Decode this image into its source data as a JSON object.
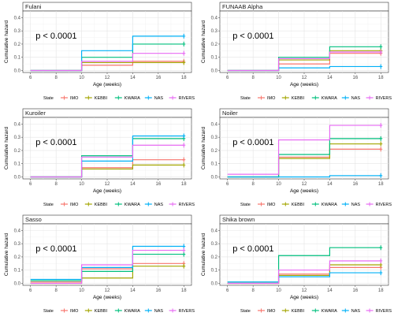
{
  "series_colors": {
    "IMO": "#F8766D",
    "KEBBI": "#A3A500",
    "KWARA": "#00BF7D",
    "NAS": "#00B0F6",
    "RIVERS": "#E76BF3"
  },
  "chart_data": [
    {
      "type": "line",
      "title": "Fulani",
      "xlabel": "Age (weeks)",
      "ylabel": "Cumulative hazard",
      "annotation": "p < 0.0001",
      "xlim": [
        5.4,
        18.6
      ],
      "ylim": [
        -0.015,
        0.45
      ],
      "xticks": [
        6,
        8,
        10,
        12,
        14,
        16,
        18
      ],
      "yticks": [
        0.0,
        0.1,
        0.2,
        0.3,
        0.4
      ],
      "ytick_labels": [
        "0.0",
        "0.1",
        "0.2",
        "0.3",
        "0.4"
      ],
      "legend_title": "State",
      "legend_position": "bottom",
      "series": [
        {
          "name": "IMO",
          "x": [
            6,
            10,
            14,
            18
          ],
          "y": [
            0.0,
            0.04,
            0.07,
            0.07
          ]
        },
        {
          "name": "KEBBI",
          "x": [
            6,
            10,
            14,
            18
          ],
          "y": [
            0.0,
            0.06,
            0.06,
            0.06
          ]
        },
        {
          "name": "KWARA",
          "x": [
            6,
            10,
            14,
            18
          ],
          "y": [
            0.0,
            0.1,
            0.2,
            0.2
          ]
        },
        {
          "name": "NAS",
          "x": [
            6,
            10,
            14,
            18
          ],
          "y": [
            0.0,
            0.15,
            0.26,
            0.26
          ]
        },
        {
          "name": "RIVERS",
          "x": [
            6,
            10,
            14,
            18
          ],
          "y": [
            0.0,
            0.07,
            0.13,
            0.13
          ]
        }
      ]
    },
    {
      "type": "line",
      "title": "FUNAAB Alpha",
      "xlabel": "Age (weeks)",
      "ylabel": "Cumulative hazard",
      "annotation": "p < 0.0001",
      "xlim": [
        5.4,
        18.6
      ],
      "ylim": [
        -0.015,
        0.45
      ],
      "xticks": [
        6,
        8,
        10,
        12,
        14,
        16,
        18
      ],
      "yticks": [
        0.0,
        0.1,
        0.2,
        0.3,
        0.4
      ],
      "ytick_labels": [
        "0.0",
        "0.1",
        "0.2",
        "0.3",
        "0.4"
      ],
      "legend_title": "State",
      "legend_position": "bottom",
      "series": [
        {
          "name": "IMO",
          "x": [
            6,
            10,
            14,
            18
          ],
          "y": [
            0.0,
            0.05,
            0.13,
            0.13
          ]
        },
        {
          "name": "KEBBI",
          "x": [
            6,
            10,
            14,
            18
          ],
          "y": [
            0.0,
            0.08,
            0.15,
            0.15
          ]
        },
        {
          "name": "KWARA",
          "x": [
            6,
            10,
            14,
            18
          ],
          "y": [
            0.0,
            0.1,
            0.18,
            0.18
          ]
        },
        {
          "name": "NAS",
          "x": [
            6,
            10,
            14,
            18
          ],
          "y": [
            0.0,
            0.02,
            0.03,
            0.03
          ]
        },
        {
          "name": "RIVERS",
          "x": [
            6,
            10,
            14,
            18
          ],
          "y": [
            0.0,
            0.09,
            0.14,
            0.14
          ]
        }
      ]
    },
    {
      "type": "line",
      "title": "Kuroiler",
      "xlabel": "Age (weeks)",
      "ylabel": "Cumulative hazard",
      "annotation": "p < 0.0001",
      "xlim": [
        5.4,
        18.6
      ],
      "ylim": [
        -0.015,
        0.45
      ],
      "xticks": [
        6,
        8,
        10,
        12,
        14,
        16,
        18
      ],
      "yticks": [
        0.0,
        0.1,
        0.2,
        0.3,
        0.4
      ],
      "ytick_labels": [
        "0.0",
        "0.1",
        "0.2",
        "0.3",
        "0.4"
      ],
      "legend_title": "State",
      "legend_position": "bottom",
      "series": [
        {
          "name": "IMO",
          "x": [
            6,
            10,
            14,
            18
          ],
          "y": [
            0.0,
            0.07,
            0.13,
            0.13
          ]
        },
        {
          "name": "KEBBI",
          "x": [
            6,
            10,
            14,
            18
          ],
          "y": [
            0.0,
            0.06,
            0.09,
            0.09
          ]
        },
        {
          "name": "KWARA",
          "x": [
            6,
            10,
            14,
            18
          ],
          "y": [
            0.0,
            0.16,
            0.29,
            0.29
          ]
        },
        {
          "name": "NAS",
          "x": [
            6,
            10,
            14,
            18
          ],
          "y": [
            0.0,
            0.12,
            0.31,
            0.31
          ]
        },
        {
          "name": "RIVERS",
          "x": [
            6,
            10,
            14,
            18
          ],
          "y": [
            0.0,
            0.15,
            0.24,
            0.24
          ]
        }
      ]
    },
    {
      "type": "line",
      "title": "Noiler",
      "xlabel": "Age (weeks)",
      "ylabel": "Cumulative hazard",
      "annotation": "p < 0.0001",
      "xlim": [
        5.4,
        18.6
      ],
      "ylim": [
        -0.015,
        0.45
      ],
      "xticks": [
        6,
        8,
        10,
        12,
        14,
        16,
        18
      ],
      "yticks": [
        0.0,
        0.1,
        0.2,
        0.3,
        0.4
      ],
      "ytick_labels": [
        "0.0",
        "0.1",
        "0.2",
        "0.3",
        "0.4"
      ],
      "legend_title": "State",
      "legend_position": "bottom",
      "series": [
        {
          "name": "IMO",
          "x": [
            6,
            10,
            14,
            18
          ],
          "y": [
            0.0,
            0.15,
            0.21,
            0.21
          ]
        },
        {
          "name": "KEBBI",
          "x": [
            6,
            10,
            14,
            18
          ],
          "y": [
            0.0,
            0.14,
            0.25,
            0.25
          ]
        },
        {
          "name": "KWARA",
          "x": [
            6,
            10,
            14,
            18
          ],
          "y": [
            0.0,
            0.17,
            0.29,
            0.29
          ]
        },
        {
          "name": "NAS",
          "x": [
            6,
            10,
            14,
            18
          ],
          "y": [
            0.0,
            0.0,
            0.01,
            0.01
          ]
        },
        {
          "name": "RIVERS",
          "x": [
            6,
            10,
            14,
            18
          ],
          "y": [
            0.02,
            0.28,
            0.39,
            0.39
          ]
        }
      ]
    },
    {
      "type": "line",
      "title": "Sasso",
      "xlabel": "Age (weeks)",
      "ylabel": "Cumulative hazard",
      "annotation": "p < 0.0001",
      "xlim": [
        5.4,
        18.6
      ],
      "ylim": [
        -0.015,
        0.45
      ],
      "xticks": [
        6,
        8,
        10,
        12,
        14,
        16,
        18
      ],
      "yticks": [
        0.0,
        0.1,
        0.2,
        0.3,
        0.4
      ],
      "ytick_labels": [
        "0.0",
        "0.1",
        "0.2",
        "0.3",
        "0.4"
      ],
      "legend_title": "State",
      "legend_position": "bottom",
      "series": [
        {
          "name": "IMO",
          "x": [
            6,
            10,
            14,
            18
          ],
          "y": [
            0.01,
            0.11,
            0.15,
            0.15
          ]
        },
        {
          "name": "KEBBI",
          "x": [
            6,
            10,
            14,
            18
          ],
          "y": [
            0.0,
            0.04,
            0.13,
            0.13
          ]
        },
        {
          "name": "KWARA",
          "x": [
            6,
            10,
            14,
            18
          ],
          "y": [
            0.02,
            0.09,
            0.22,
            0.22
          ]
        },
        {
          "name": "NAS",
          "x": [
            6,
            10,
            14,
            18
          ],
          "y": [
            0.03,
            0.12,
            0.28,
            0.28
          ]
        },
        {
          "name": "RIVERS",
          "x": [
            6,
            10,
            14,
            18
          ],
          "y": [
            0.0,
            0.14,
            0.25,
            0.25
          ]
        }
      ]
    },
    {
      "type": "line",
      "title": "Shika brown",
      "xlabel": "Age (weeks)",
      "ylabel": "Cumulative hazard",
      "annotation": "p < 0.0001",
      "xlim": [
        5.4,
        18.6
      ],
      "ylim": [
        -0.015,
        0.45
      ],
      "xticks": [
        6,
        8,
        10,
        12,
        14,
        16,
        18
      ],
      "yticks": [
        0.0,
        0.1,
        0.2,
        0.3,
        0.4
      ],
      "ytick_labels": [
        "0.0",
        "0.1",
        "0.2",
        "0.3",
        "0.4"
      ],
      "legend_title": "State",
      "legend_position": "bottom",
      "series": [
        {
          "name": "IMO",
          "x": [
            6,
            10,
            14,
            18
          ],
          "y": [
            0.0,
            0.07,
            0.12,
            0.12
          ]
        },
        {
          "name": "KEBBI",
          "x": [
            6,
            10,
            14,
            18
          ],
          "y": [
            0.0,
            0.06,
            0.14,
            0.14
          ]
        },
        {
          "name": "KWARA",
          "x": [
            6,
            10,
            14,
            18
          ],
          "y": [
            0.01,
            0.21,
            0.27,
            0.27
          ]
        },
        {
          "name": "NAS",
          "x": [
            6,
            10,
            14,
            18
          ],
          "y": [
            0.01,
            0.05,
            0.08,
            0.08
          ]
        },
        {
          "name": "RIVERS",
          "x": [
            6,
            10,
            14,
            18
          ],
          "y": [
            0.0,
            0.1,
            0.17,
            0.17
          ]
        }
      ]
    }
  ]
}
